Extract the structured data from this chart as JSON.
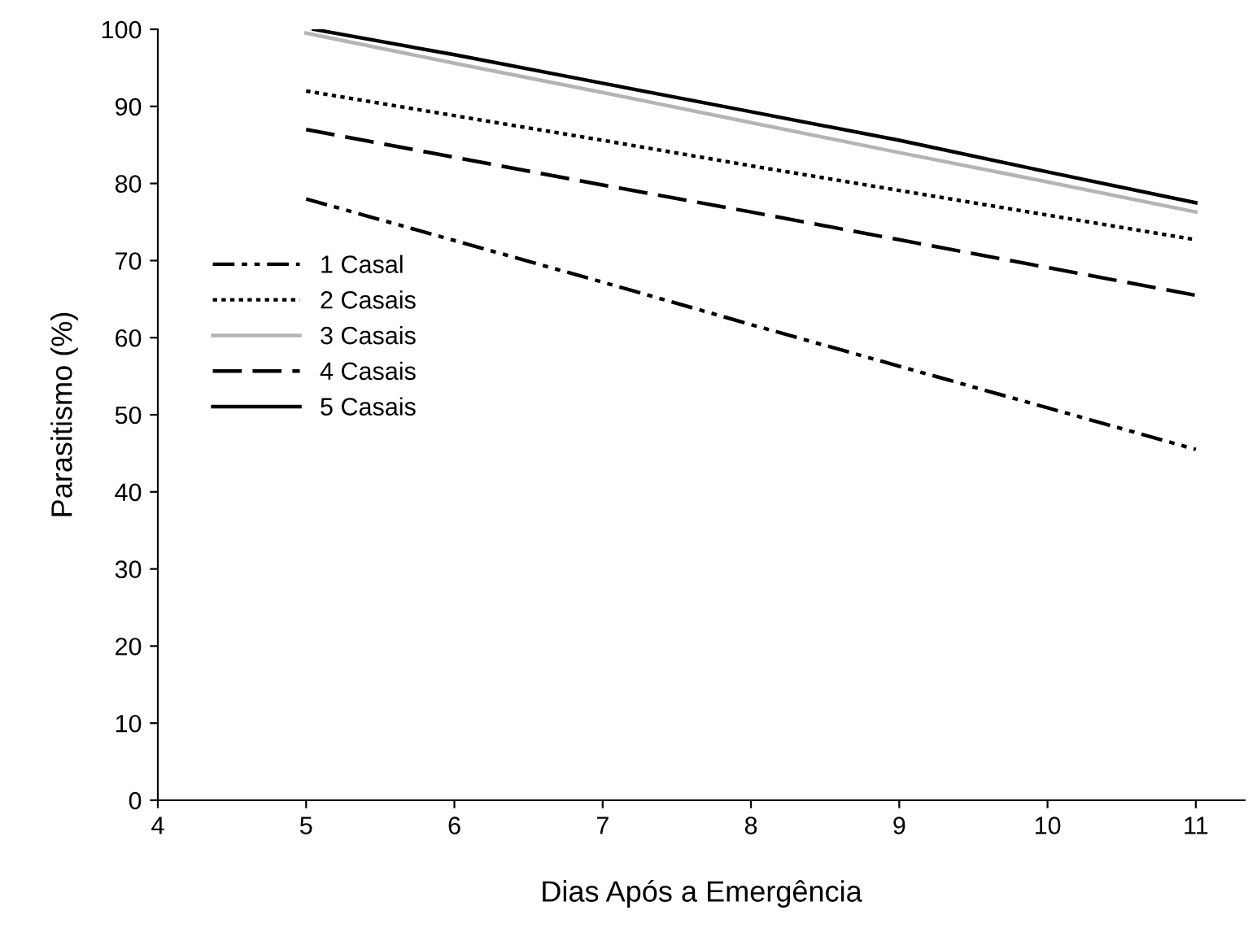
{
  "chart_data": {
    "type": "line",
    "xlabel": "Dias Após a Emergência",
    "ylabel": "Parasitismo (%)",
    "x": [
      5,
      6,
      7,
      8,
      9,
      10,
      11
    ],
    "series": [
      {
        "name": "1 Casal",
        "color": "#000000",
        "line_style": "dashdotdot",
        "values": [
          78,
          72.6,
          67.2,
          61.7,
          56.3,
          50.9,
          45.5
        ]
      },
      {
        "name": "2 Casais",
        "color": "#000000",
        "line_style": "dotted",
        "values": [
          92,
          88.8,
          85.6,
          82.3,
          79.1,
          75.9,
          72.7
        ]
      },
      {
        "name": "3 Casais",
        "color": "#b4b4b4",
        "line_style": "solid",
        "values": [
          99.5,
          95.6,
          91.8,
          87.9,
          84.0,
          80.2,
          76.3
        ]
      },
      {
        "name": "4 Casais",
        "color": "#000000",
        "line_style": "dashed",
        "values": [
          87,
          83.4,
          79.8,
          76.3,
          72.7,
          69.1,
          65.5
        ]
      },
      {
        "name": "5 Casais",
        "color": "#000000",
        "line_style": "solid",
        "x": [
          5.05,
          6,
          7,
          8,
          9,
          10,
          11
        ],
        "values": [
          100,
          96.7,
          93,
          89.3,
          85.6,
          81.5,
          77.5
        ]
      }
    ],
    "xlim": [
      4,
      11.33
    ],
    "xticks": [
      4,
      5,
      6,
      7,
      8,
      9,
      10,
      11
    ],
    "ylim": [
      0,
      100
    ],
    "yticks": [
      0,
      10,
      20,
      30,
      40,
      50,
      60,
      70,
      80,
      90,
      100
    ],
    "grid": false,
    "legend": "left",
    "marker": "none"
  }
}
